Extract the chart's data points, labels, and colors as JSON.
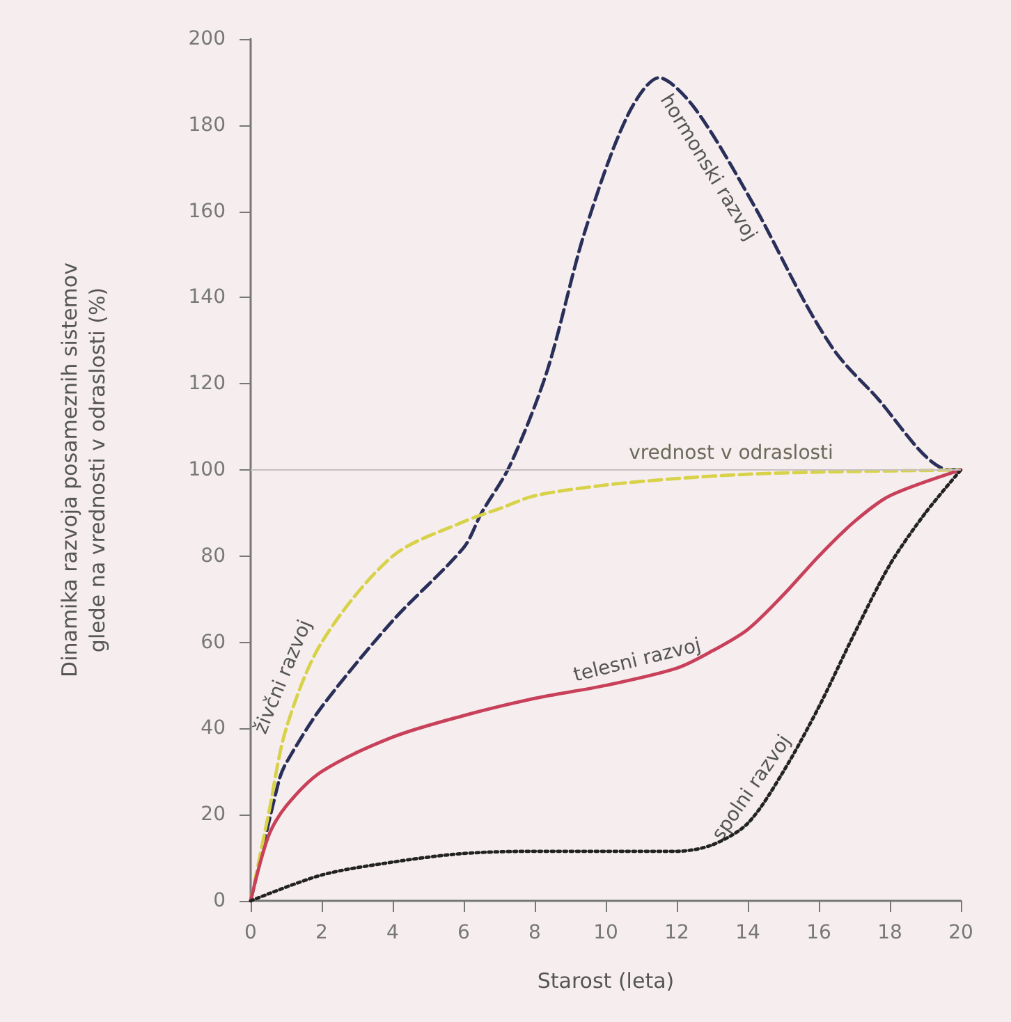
{
  "chart_data": {
    "type": "line",
    "xlabel": "Starost (leta)",
    "ylabel": "Dinamika razvoja posameznih sistemov\nglede na vrednosti v odraslosti (%)",
    "xlim": [
      0,
      20
    ],
    "xticks": [
      0,
      2,
      4,
      6,
      8,
      10,
      12,
      14,
      16,
      18,
      20
    ],
    "ylim": [
      0,
      200
    ],
    "yticks": [
      0,
      20,
      40,
      60,
      80,
      100,
      120,
      140,
      160,
      180,
      200
    ],
    "grid": false,
    "legend": false,
    "marker": "none",
    "series": [
      {
        "name": "hormonski razvoj",
        "color": "#2a2f5a",
        "line_style": "dashed",
        "x": [
          0,
          0.8,
          1,
          2,
          4,
          6,
          6.5,
          7.3,
          8.35,
          9.4,
          10.6,
          11.5,
          12.5,
          14.2,
          15.6,
          16.5,
          17.5,
          19.7,
          20
        ],
        "values": [
          0,
          28,
          32,
          45,
          65,
          82,
          90,
          101,
          123,
          155,
          182,
          191,
          184,
          161,
          139,
          127,
          118,
          100,
          100
        ]
      },
      {
        "name": "živčni razvoj",
        "color": "#d8d24a",
        "line_style": "dashed",
        "x": [
          0,
          0.5,
          1,
          2,
          4,
          6,
          7,
          8,
          10,
          12,
          14,
          16,
          20
        ],
        "values": [
          0,
          20,
          40,
          60,
          80,
          88,
          91,
          94,
          96.5,
          98,
          99,
          99.5,
          100
        ]
      },
      {
        "name": "telesni razvoj",
        "color": "#c8405a",
        "line_style": "solid",
        "x": [
          0,
          0.5,
          1,
          2,
          4,
          6,
          8,
          10,
          12,
          13,
          14,
          15,
          16,
          17,
          18,
          20
        ],
        "values": [
          0,
          15,
          22,
          30,
          38,
          43,
          47,
          50,
          54,
          58,
          63,
          71,
          80,
          88,
          94,
          100
        ]
      },
      {
        "name": "spolni razvoj",
        "color": "#222222",
        "line_style": "dotted",
        "x": [
          0,
          2,
          4,
          6,
          8,
          10,
          12,
          13,
          14,
          15,
          16,
          17,
          18,
          19,
          20
        ],
        "values": [
          0,
          6,
          9,
          11,
          11.5,
          11.5,
          11.5,
          13,
          18,
          30,
          45,
          62,
          78,
          90,
          100
        ]
      }
    ],
    "ref_lines": [
      {
        "axis": "y",
        "value": 100,
        "label": "vrednost v odraslosti",
        "color": "#c8c0c0"
      }
    ]
  }
}
